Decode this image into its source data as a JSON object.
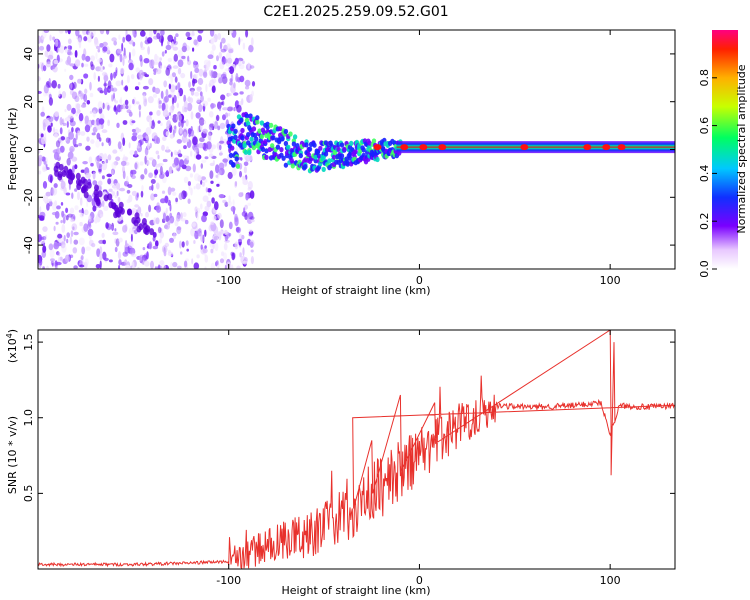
{
  "figure_title": "C2E1.2025.259.09.52.G01",
  "colors": {
    "snr_line": "#e8312c",
    "axis": "#000000",
    "band_core": "#d81818"
  },
  "chart_data": [
    {
      "type": "heatmap",
      "title": "C2E1.2025.259.09.52.G01",
      "xlabel": "Height of straight line (km)",
      "ylabel": "Frequency (Hz)",
      "xlim": [
        -200,
        134
      ],
      "ylim": [
        -50,
        50
      ],
      "x_ticks": [
        {
          "value": -100,
          "label": "-100"
        },
        {
          "value": 0,
          "label": "0"
        },
        {
          "value": 100,
          "label": "100"
        }
      ],
      "y_ticks": [
        {
          "value": -40,
          "label": "-40"
        },
        {
          "value": -20,
          "label": "-20"
        },
        {
          "value": 0,
          "label": "0"
        },
        {
          "value": 20,
          "label": "20"
        },
        {
          "value": 40,
          "label": "40"
        }
      ],
      "dominant_band": {
        "description_points": [
          {
            "x": -95,
            "f": 8
          },
          {
            "x": -80,
            "f": 4
          },
          {
            "x": -60,
            "f": -3
          },
          {
            "x": -40,
            "f": -2
          },
          {
            "x": -20,
            "f": 0
          },
          {
            "x": 0,
            "f": 1
          },
          {
            "x": 50,
            "f": 1
          },
          {
            "x": 100,
            "f": 1
          },
          {
            "x": 134,
            "f": 1
          }
        ]
      },
      "noise_region_x": [
        -200,
        -95
      ],
      "diagonal_feature": [
        {
          "x": -195,
          "f": -5
        },
        {
          "x": -140,
          "f": -35
        }
      ],
      "colorbar": {
        "label": "Normalized spectral amplitude",
        "range": [
          0,
          1
        ],
        "ticks": [
          {
            "value": 0.0,
            "label": "0.0"
          },
          {
            "value": 0.2,
            "label": "0.2"
          },
          {
            "value": 0.4,
            "label": "0.4"
          },
          {
            "value": 0.6,
            "label": "0.6"
          },
          {
            "value": 0.8,
            "label": "0.8"
          }
        ]
      }
    },
    {
      "type": "line",
      "xlabel": "Height of straight line (km)",
      "ylabel": "SNR (10 * v/v)",
      "y_multiplier": "(x10",
      "y_multiplier_exp": "4",
      "y_multiplier_close": ")",
      "xlim": [
        -200,
        134
      ],
      "ylim": [
        0,
        1.58
      ],
      "x_ticks": [
        {
          "value": -100,
          "label": "-100"
        },
        {
          "value": 0,
          "label": "0"
        },
        {
          "value": 100,
          "label": "100"
        }
      ],
      "y_ticks": [
        {
          "value": 0.5,
          "label": "0.5"
        },
        {
          "value": 1.0,
          "label": "1.0"
        },
        {
          "value": 1.5,
          "label": "1.5"
        }
      ],
      "series": [
        {
          "name": "SNR",
          "x": [
            -200,
            -150,
            -120,
            -100,
            -90,
            -80,
            -70,
            -60,
            -50,
            -40,
            -30,
            -20,
            -10,
            0,
            10,
            20,
            30,
            40,
            60,
            80,
            95,
            100,
            105,
            120,
            134
          ],
          "values": [
            0.03,
            0.03,
            0.04,
            0.05,
            0.1,
            0.15,
            0.2,
            0.22,
            0.28,
            0.35,
            0.45,
            0.55,
            0.65,
            0.75,
            0.85,
            0.95,
            1.02,
            1.08,
            1.07,
            1.08,
            1.1,
            0.9,
            1.08,
            1.07,
            1.08
          ]
        }
      ],
      "spikes": [
        {
          "x": -35,
          "y": 1.0
        },
        {
          "x": -25,
          "y": 0.85
        },
        {
          "x": -10,
          "y": 1.15
        },
        {
          "x": 8,
          "y": 1.1
        },
        {
          "x": 100,
          "y": 1.58
        },
        {
          "x": 100.5,
          "y": 0.62
        },
        {
          "x": 102,
          "y": 1.5
        }
      ]
    }
  ]
}
